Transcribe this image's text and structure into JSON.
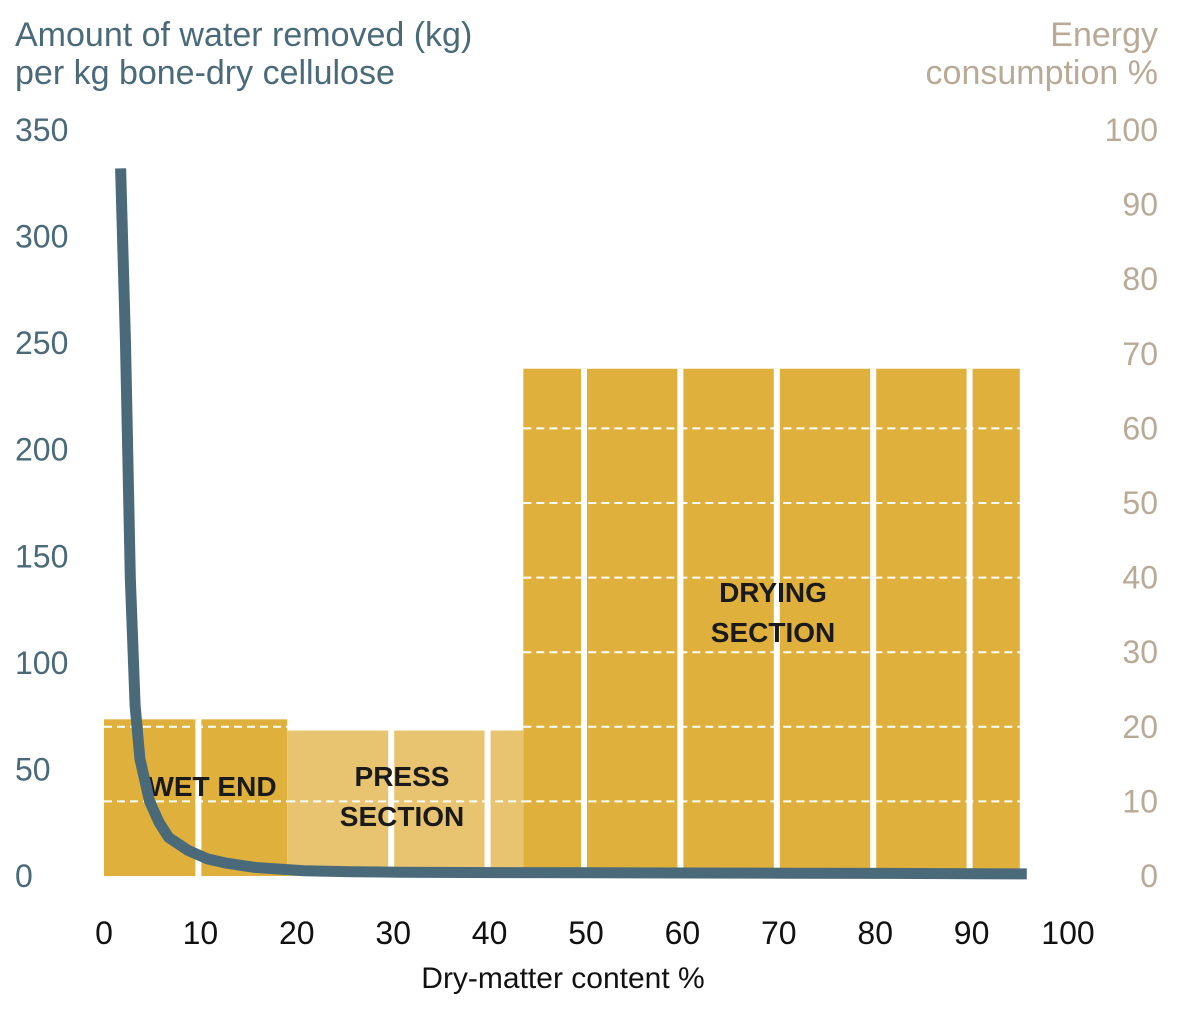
{
  "chart_data": {
    "type": "bar",
    "xlabel": "Dry-matter content %",
    "ylabel": "Amount of water removed (kg)\nper kg bone-dry cellulose",
    "y2label": "Energy\nconsumption %",
    "xlim": [
      0,
      100
    ],
    "ylim": [
      0,
      350
    ],
    "y2lim": [
      0,
      100
    ],
    "x_ticks": [
      0,
      10,
      20,
      30,
      40,
      50,
      60,
      70,
      80,
      90,
      100
    ],
    "y_ticks": [
      0,
      50,
      100,
      150,
      200,
      250,
      300,
      350
    ],
    "y2_ticks": [
      0,
      10,
      20,
      30,
      40,
      50,
      60,
      70,
      80,
      90,
      100
    ],
    "grid": "dashed horizontal lines every 10 energy % across bars",
    "sections": [
      {
        "label": "WET END",
        "label_lines": [
          "WET END"
        ],
        "x_start": 0,
        "x_end": 19,
        "energy_percent": 21,
        "color": "#e0b03c",
        "dividers": [
          10
        ]
      },
      {
        "label": "PRESS SECTION",
        "label_lines": [
          "PRESS",
          "SECTION"
        ],
        "x_start": 19,
        "x_end": 43.5,
        "energy_percent": 19.5,
        "color": "#e8c470",
        "dividers": [
          30,
          40
        ]
      },
      {
        "label": "DRYING SECTION",
        "label_lines": [
          "DRYING",
          "SECTION"
        ],
        "x_start": 43.5,
        "x_end": 95,
        "energy_percent": 68,
        "color": "#e0b03c",
        "dividers": [
          50,
          60,
          70,
          80,
          90
        ]
      }
    ],
    "series": [
      {
        "name": "Amount of water removed (kg) per kg bone-dry cellulose",
        "axis": "left",
        "color": "#4a6a7a",
        "x": [
          1,
          1.5,
          2,
          2.5,
          3,
          4,
          5,
          6,
          8,
          10,
          12,
          15,
          20,
          25,
          30,
          40,
          50,
          60,
          70,
          80,
          90,
          95
        ],
        "y": [
          332,
          250,
          140,
          80,
          55,
          35,
          25,
          18,
          12,
          8,
          6,
          4,
          2.5,
          2,
          1.8,
          1.6,
          1.5,
          1.4,
          1.3,
          1.2,
          1.1,
          1
        ]
      }
    ]
  },
  "colors": {
    "curve": "#4a6a7a",
    "left_axis_text": "#4a6a7a",
    "right_axis_text": "#b8aa96",
    "bar_dark": "#e0b03c",
    "bar_light": "#e8c470",
    "divider": "#ffffff"
  }
}
